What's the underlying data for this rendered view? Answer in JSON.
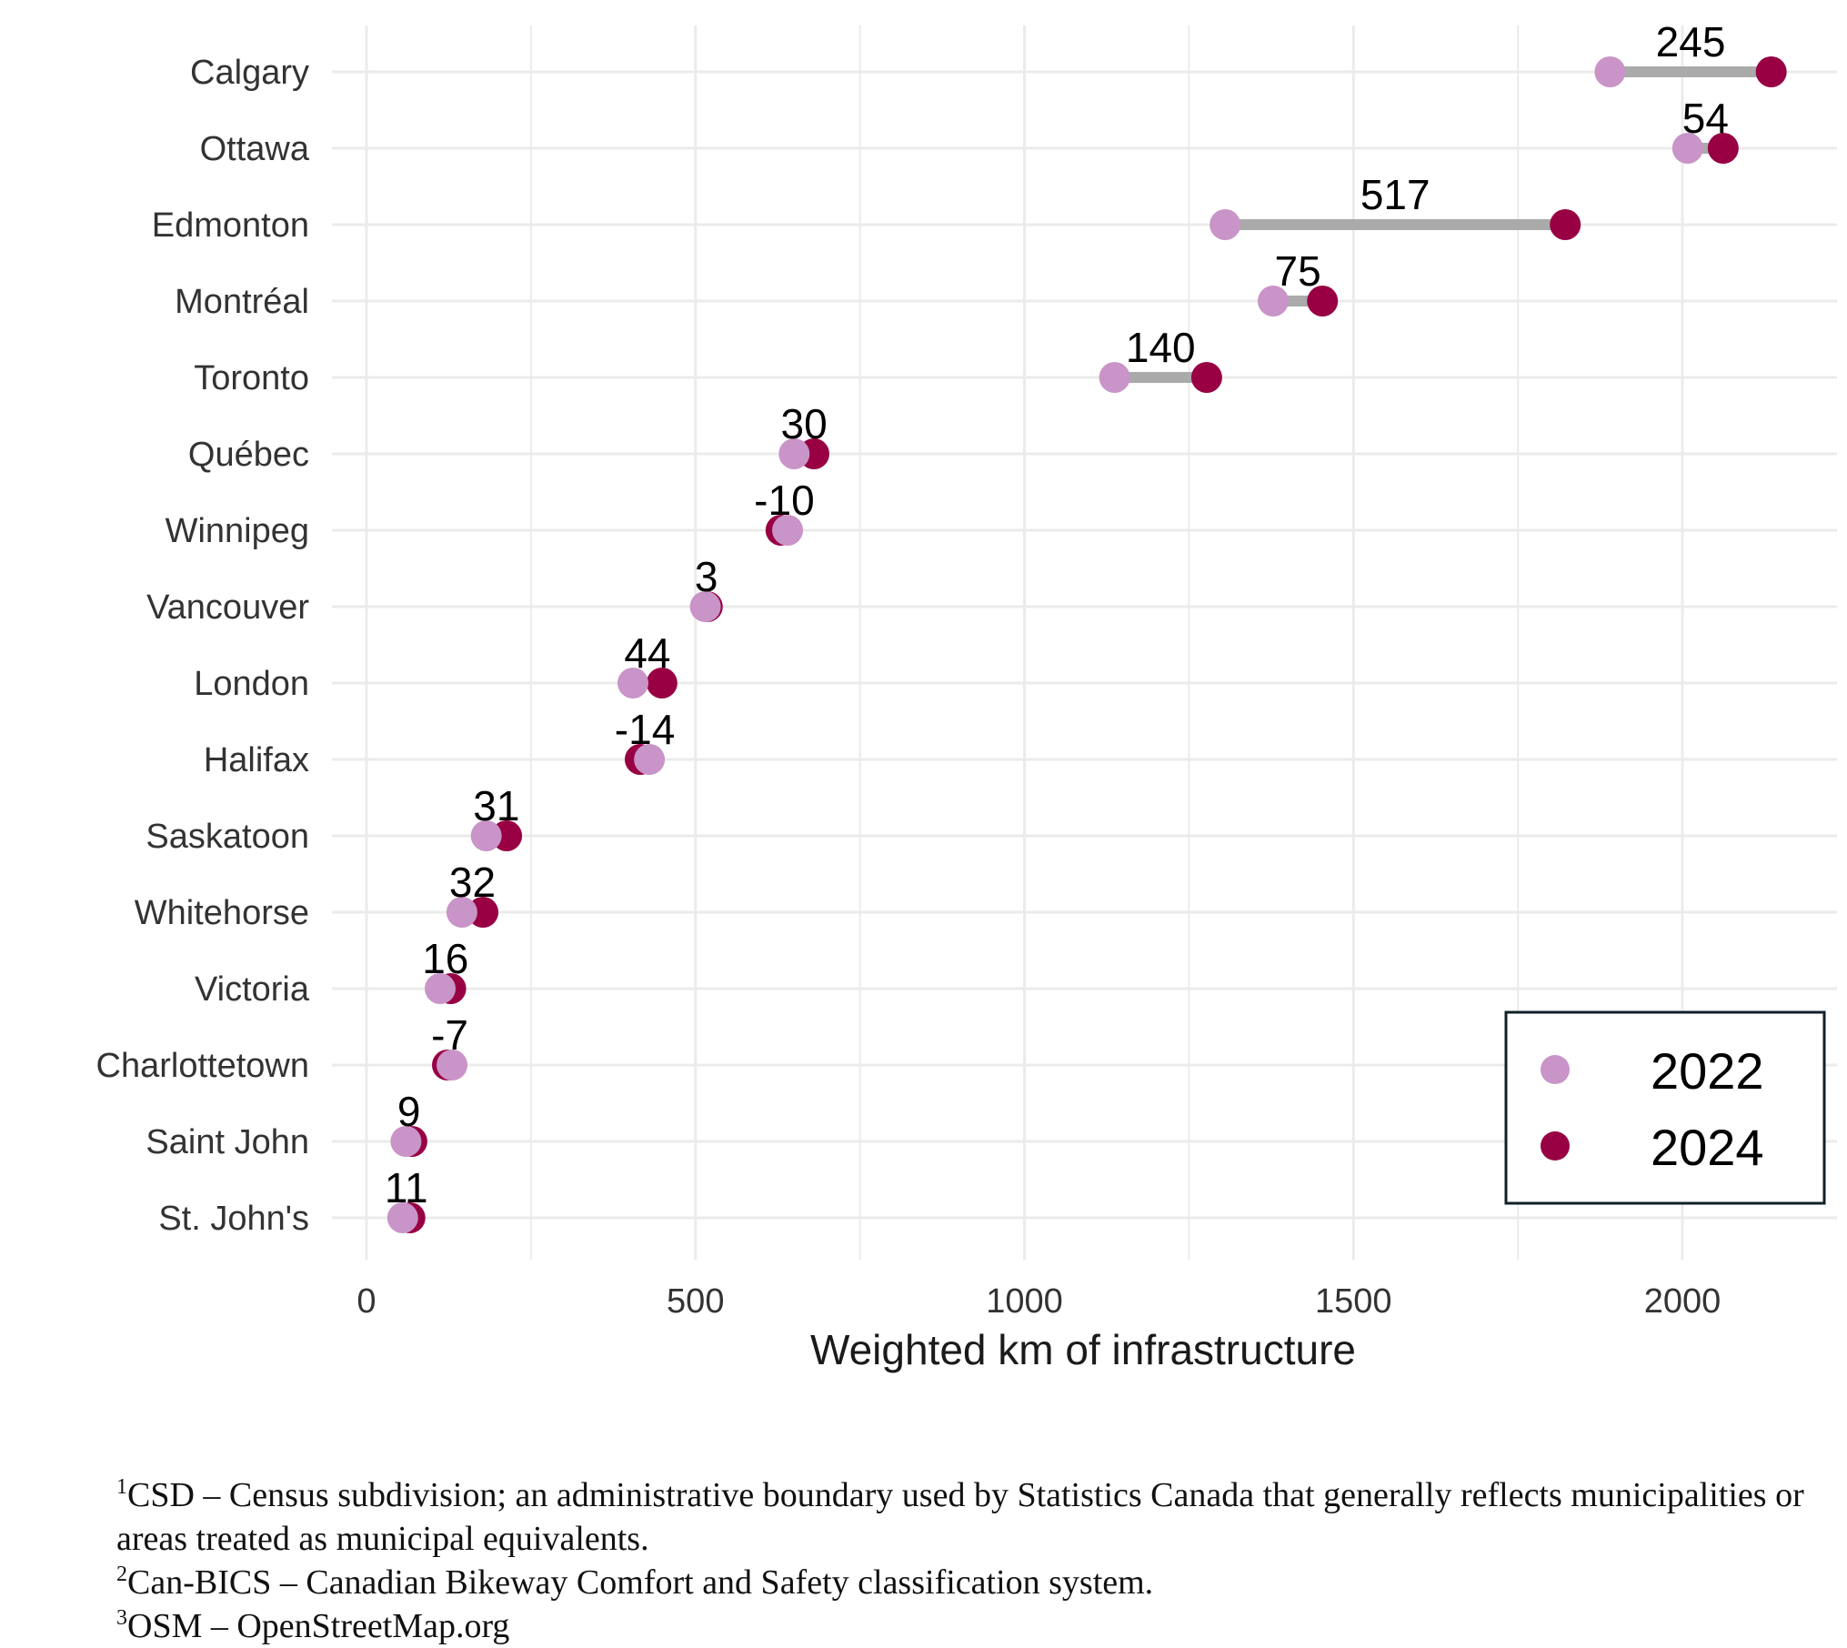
{
  "chart_data": {
    "type": "dumbbell",
    "xlabel": "Weighted km of infrastructure",
    "ylabel": "",
    "xlim": [
      -50,
      2250
    ],
    "xticks": [
      0,
      500,
      1000,
      1500,
      2000
    ],
    "xtick_labels": [
      "0",
      "500",
      "1000",
      "1500",
      "2000"
    ],
    "grid": true,
    "legend": {
      "position": "bottom-right",
      "entries": [
        {
          "label": "2022",
          "color": "#c994c7"
        },
        {
          "label": "2024",
          "color": "#980043"
        }
      ]
    },
    "connector_color": "#aaaaaa",
    "categories": [
      "Calgary",
      "Ottawa",
      "Edmonton",
      "Montréal",
      "Toronto",
      "Québec",
      "Winnipeg",
      "Vancouver",
      "London",
      "Halifax",
      "Saskatoon",
      "Whitehorse",
      "Victoria",
      "Charlottetown",
      "Saint John",
      "St. John's"
    ],
    "series": [
      {
        "name": "2022",
        "values": [
          1890,
          2008,
          1305,
          1378,
          1137,
          650,
          640,
          515,
          405,
          430,
          182,
          145,
          112,
          130,
          60,
          55
        ]
      },
      {
        "name": "2024",
        "values": [
          2135,
          2062,
          1822,
          1453,
          1277,
          680,
          630,
          518,
          449,
          416,
          213,
          177,
          128,
          123,
          69,
          66
        ]
      }
    ],
    "differences": [
      "245",
      "54",
      "517",
      "75",
      "140",
      "30",
      "-10",
      "3",
      "44",
      "-14",
      "31",
      "32",
      "16",
      "-7",
      "9",
      "11"
    ]
  },
  "footnotes": [
    {
      "marker": "1",
      "text": "CSD – Census subdivision; an administrative boundary used by Statistics Canada that generally reflects municipalities or areas treated as municipal equivalents."
    },
    {
      "marker": "2",
      "text": "Can-BICS – Canadian Bikeway Comfort and Safety classification system."
    },
    {
      "marker": "3",
      "text": "OSM – OpenStreetMap.org"
    }
  ]
}
